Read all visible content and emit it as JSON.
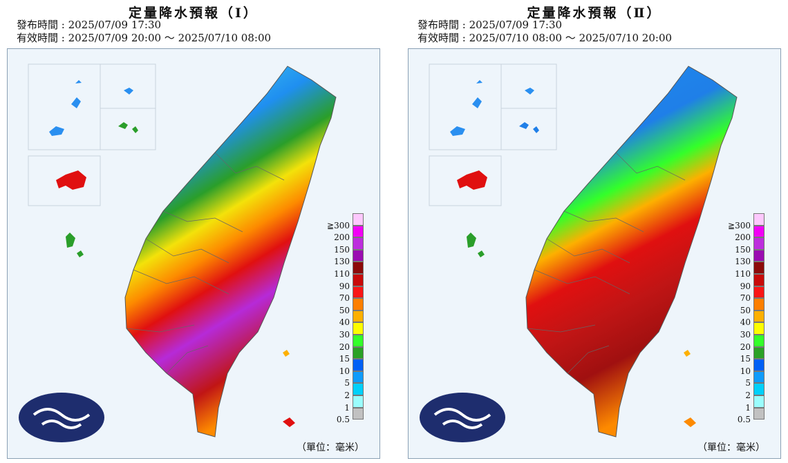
{
  "panels": [
    {
      "title": "定量降水預報（Ⅰ）",
      "issue_time": "發布時間 : 2025/07/09 17:30",
      "valid_time": "有效時間 : 2025/07/09 20:00 ～ 2025/07/10 08:00"
    },
    {
      "title": "定量降水預報（Ⅱ）",
      "issue_time": "發布時間 : 2025/07/09 17:30",
      "valid_time": "有效時間 : 2025/07/10 08:00 ～ 2025/07/10 20:00"
    }
  ],
  "legend": {
    "unit": "（單位：毫米）",
    "levels": [
      {
        "label": "≧300",
        "color": "#fdc8fd"
      },
      {
        "label": "200",
        "color": "#f100f5"
      },
      {
        "label": "150",
        "color": "#bd2ddd"
      },
      {
        "label": "130",
        "color": "#9a0cb1"
      },
      {
        "label": "110",
        "color": "#8c0a0a"
      },
      {
        "label": "90",
        "color": "#c80a0a"
      },
      {
        "label": "70",
        "color": "#f91515"
      },
      {
        "label": "50",
        "color": "#fd7f00"
      },
      {
        "label": "40",
        "color": "#fdb000"
      },
      {
        "label": "30",
        "color": "#fdfd00"
      },
      {
        "label": "20",
        "color": "#33ff2a"
      },
      {
        "label": "15",
        "color": "#2aa126"
      },
      {
        "label": "10",
        "color": "#0060f5"
      },
      {
        "label": "5",
        "color": "#0f9bfb"
      },
      {
        "label": "2",
        "color": "#00d0fb"
      },
      {
        "label": "1",
        "color": "#9afdfd"
      },
      {
        "label": "0.5",
        "color": "#c1c1c1"
      }
    ]
  }
}
